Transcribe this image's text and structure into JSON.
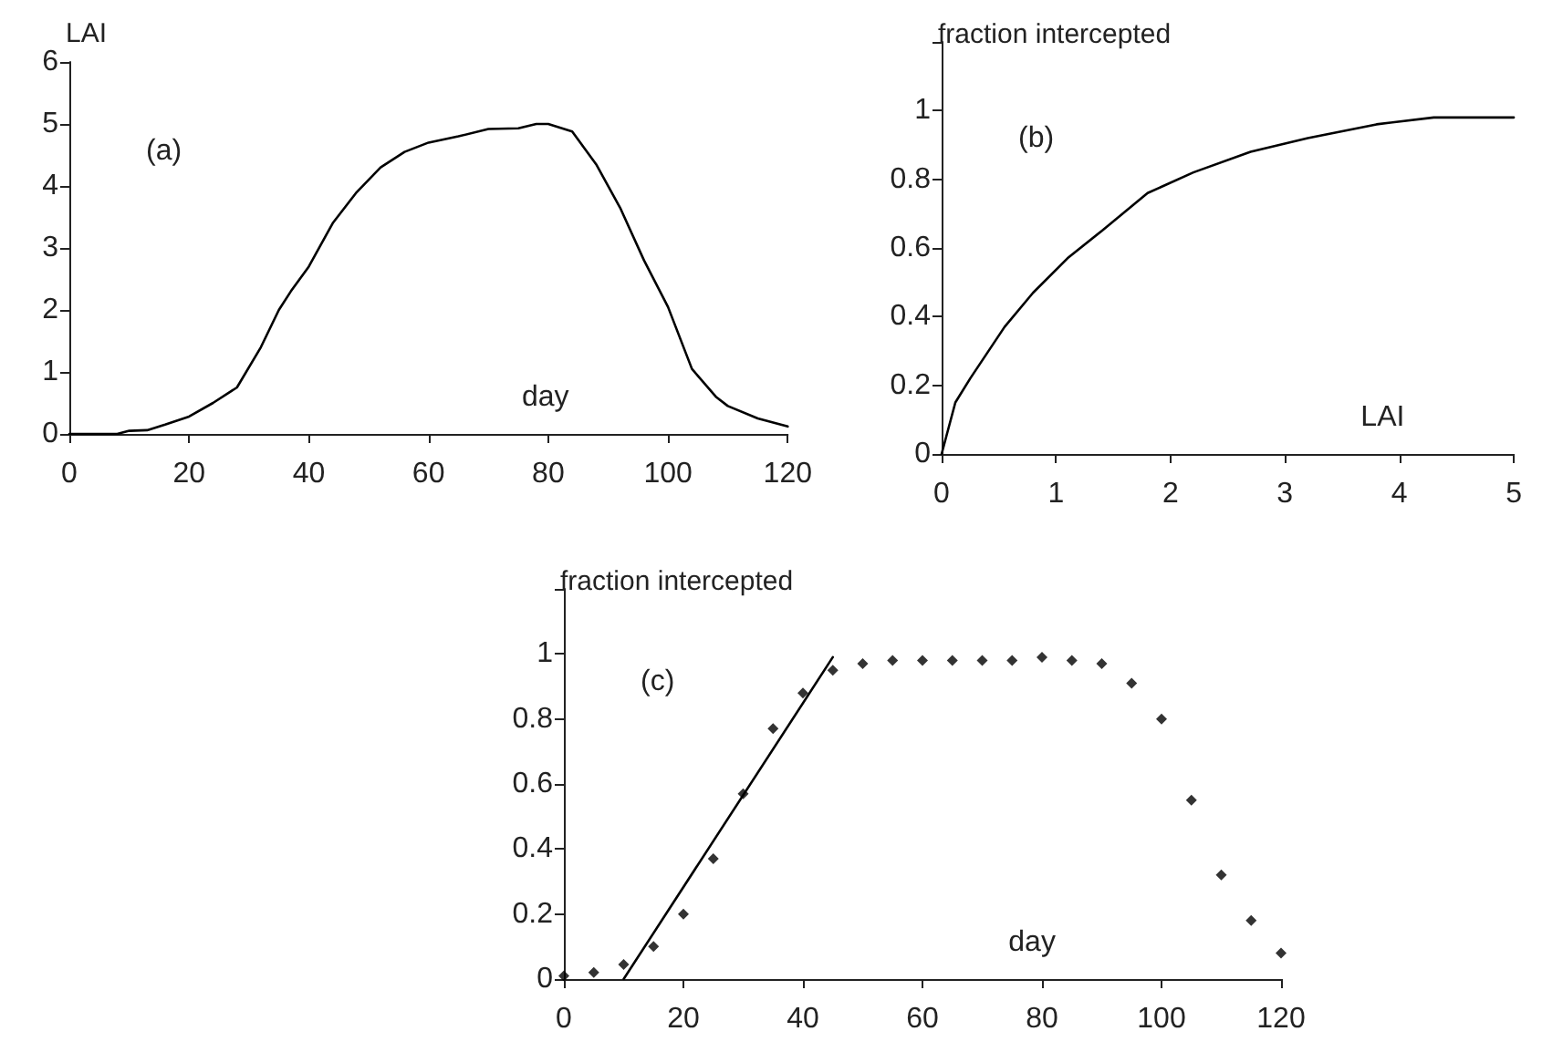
{
  "chart_data": [
    {
      "type": "line",
      "ylabel": "LAI",
      "xlabel": "day",
      "annotations": [
        "(a)"
      ],
      "xlim": [
        0,
        120
      ],
      "ylim": [
        0,
        6
      ],
      "xticks": [
        0,
        20,
        40,
        60,
        80,
        100,
        120
      ],
      "yticks": [
        0,
        1,
        2,
        3,
        4,
        5,
        6
      ],
      "series": [
        {
          "color": "#000000",
          "x": [
            0,
            8,
            10,
            13,
            16,
            20,
            24,
            28,
            32,
            35,
            37,
            40,
            44,
            48,
            52,
            56,
            60,
            65,
            70,
            75,
            78,
            80,
            84,
            88,
            92,
            96,
            100,
            104,
            108,
            110,
            115,
            120
          ],
          "values": [
            0,
            0,
            0.05,
            0.06,
            0.15,
            0.28,
            0.5,
            0.75,
            1.4,
            2.0,
            2.3,
            2.7,
            3.4,
            3.9,
            4.3,
            4.55,
            4.7,
            4.8,
            4.92,
            4.93,
            5.0,
            5.0,
            4.88,
            4.35,
            3.65,
            2.8,
            2.05,
            1.05,
            0.6,
            0.45,
            0.25,
            0.12
          ]
        }
      ]
    },
    {
      "type": "line",
      "ylabel": "fraction intercepted",
      "xlabel": "LAI",
      "annotations": [
        "(b)"
      ],
      "xlim": [
        0,
        5
      ],
      "ylim": [
        0,
        1.2
      ],
      "xticks": [
        0,
        1,
        2,
        3,
        4,
        5
      ],
      "yticks": [
        0,
        0.2,
        0.4,
        0.6,
        0.8,
        1,
        {
          "value": 1.2,
          "label": null
        }
      ],
      "series": [
        {
          "color": "#000000",
          "x": [
            0,
            0.12,
            0.25,
            0.55,
            0.8,
            1.1,
            1.4,
            1.8,
            2.2,
            2.7,
            3.2,
            3.8,
            4.3,
            5
          ],
          "values": [
            0,
            0.15,
            0.22,
            0.37,
            0.47,
            0.57,
            0.65,
            0.76,
            0.82,
            0.88,
            0.92,
            0.96,
            0.98,
            0.98
          ]
        }
      ]
    },
    {
      "type": "scatter",
      "ylabel": "fraction intercepted",
      "xlabel": "day",
      "annotations": [
        "(c)"
      ],
      "xlim": [
        0,
        120
      ],
      "ylim": [
        0,
        1.2
      ],
      "xticks": [
        0,
        20,
        40,
        60,
        80,
        100,
        120
      ],
      "yticks": [
        0,
        0.2,
        0.4,
        0.6,
        0.8,
        1,
        {
          "value": 1.2,
          "label": null
        }
      ],
      "series": [
        {
          "color": "#000000",
          "marker": "diamond",
          "x": [
            0,
            5,
            10,
            15,
            20,
            25,
            30,
            35,
            40,
            45,
            50,
            55,
            60,
            65,
            70,
            75,
            80,
            85,
            90,
            95,
            100,
            105,
            110,
            115,
            120
          ],
          "values": [
            0.01,
            0.02,
            0.045,
            0.1,
            0.2,
            0.37,
            0.57,
            0.77,
            0.88,
            0.95,
            0.97,
            0.98,
            0.98,
            0.98,
            0.98,
            0.98,
            0.99,
            0.98,
            0.97,
            0.91,
            0.8,
            0.55,
            0.32,
            0.18,
            0.08
          ]
        },
        {
          "type": "line",
          "color": "#000000",
          "marker": "none",
          "x": [
            10,
            45
          ],
          "values": [
            0,
            0.99
          ]
        }
      ]
    }
  ]
}
